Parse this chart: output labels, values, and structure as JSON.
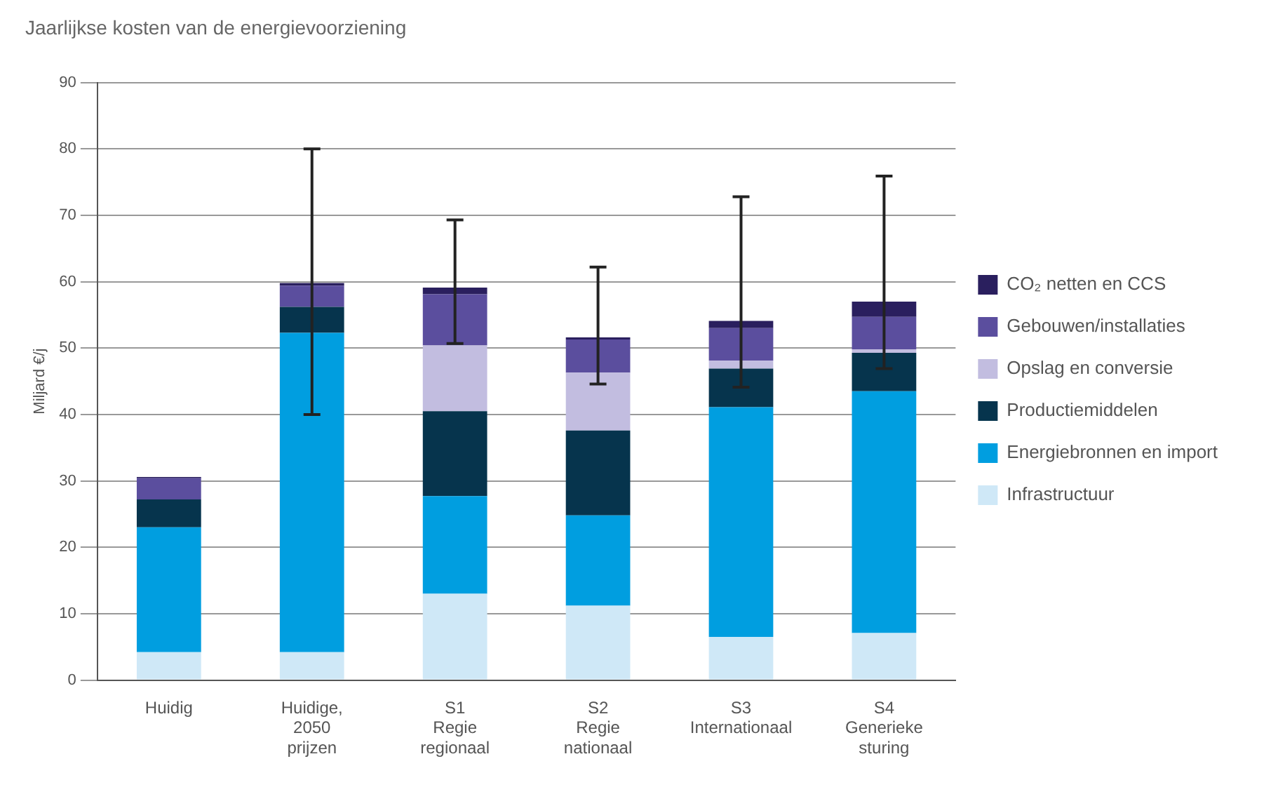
{
  "chart_data": {
    "type": "bar",
    "title": "Jaarlijkse kosten van de energievoorziening",
    "ylabel": "Miljard €/j",
    "categories": [
      "Huidig",
      "Huidige, 2050 prijzen",
      "S1 Regie regionaal",
      "S2 Regie nationaal",
      "S3 Internationaal",
      "S4 Generieke sturing"
    ],
    "stacked": true,
    "ylim": [
      0,
      90
    ],
    "yticks": [
      0,
      10,
      20,
      30,
      40,
      50,
      60,
      70,
      80,
      90
    ],
    "grid": "y",
    "legend": "right",
    "series": [
      {
        "name": "Infrastructuur",
        "color": "#cfe8f7",
        "values": [
          4.2,
          4.2,
          13,
          11.2,
          6.5,
          7.1
        ]
      },
      {
        "name": "Energiebronnen en import",
        "color": "#009ee0",
        "values": [
          18.8,
          48.1,
          14.7,
          13.6,
          34.6,
          36.4
        ]
      },
      {
        "name": "Productiemiddelen",
        "color": "#06344d",
        "values": [
          4.2,
          3.9,
          12.8,
          12.8,
          5.8,
          5.8
        ]
      },
      {
        "name": "Opslag en conversie",
        "color": "#c2bde0",
        "values": [
          0,
          0,
          9.9,
          8.7,
          1.2,
          0.5
        ]
      },
      {
        "name": "Gebouwen/installaties",
        "color": "#5b4e9e",
        "values": [
          3.2,
          3.2,
          7.7,
          5.0,
          4.9,
          4.9
        ]
      },
      {
        "name": "CO₂ netten en CCS",
        "color": "#2a1f5e",
        "values": [
          0.2,
          0.4,
          1.0,
          0.3,
          1.1,
          2.3
        ],
        "errors": [
          null,
          [
            40,
            80
          ],
          [
            50.7,
            69.3
          ],
          [
            44.6,
            62.2
          ],
          [
            44.1,
            72.8
          ],
          [
            46.9,
            75.9
          ]
        ]
      }
    ]
  }
}
